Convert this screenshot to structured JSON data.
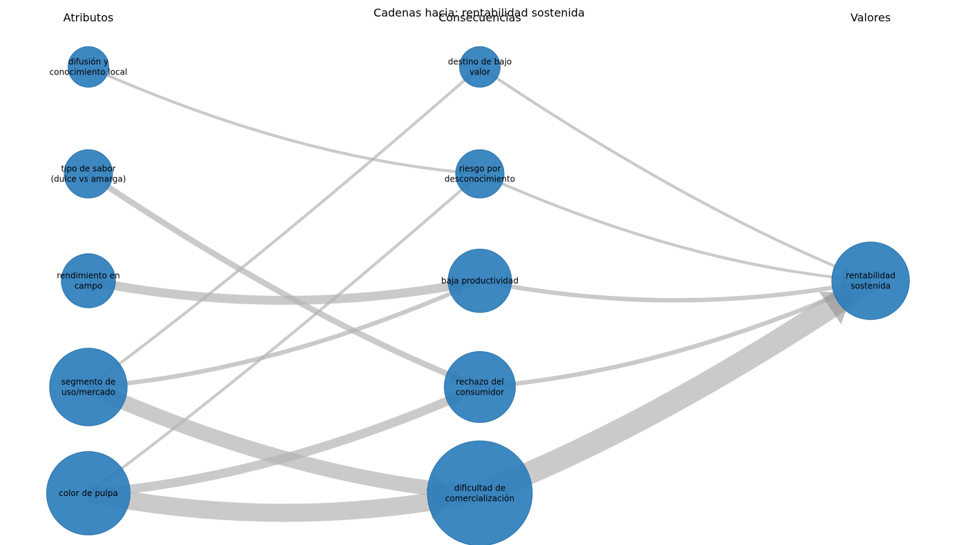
{
  "title": "Cadenas hacia: rentabilidad sostenida",
  "columns": {
    "attributes": "Atributos",
    "consequences": "Consecuencias",
    "values": "Valores"
  },
  "colors": {
    "node": "#2e7ebc",
    "edge": "#b3b3b3",
    "arrow": "#8c8c8c"
  },
  "nodes": [
    {
      "id": "difusion",
      "column": "attributes",
      "label": [
        "difusión y",
        "conocimiento local"
      ],
      "weight": 1
    },
    {
      "id": "sabor",
      "column": "attributes",
      "label": [
        "tipo de sabor",
        "(dulce vs amarga)"
      ],
      "weight": 2
    },
    {
      "id": "rendimiento",
      "column": "attributes",
      "label": [
        "rendimiento en",
        "campo"
      ],
      "weight": 3
    },
    {
      "id": "segmento",
      "column": "attributes",
      "label": [
        "segmento de",
        "uso/mercado"
      ],
      "weight": 9
    },
    {
      "id": "pulpa",
      "column": "attributes",
      "label": [
        "color de pulpa"
      ],
      "weight": 11
    },
    {
      "id": "destino",
      "column": "consequences",
      "label": [
        "destino de bajo",
        "valor"
      ],
      "weight": 1
    },
    {
      "id": "riesgo",
      "column": "consequences",
      "label": [
        "riesgo por",
        "desconocimiento"
      ],
      "weight": 2
    },
    {
      "id": "baja",
      "column": "consequences",
      "label": [
        "baja productividad"
      ],
      "weight": 5
    },
    {
      "id": "rechazo",
      "column": "consequences",
      "label": [
        "rechazo del",
        "consumidor"
      ],
      "weight": 7
    },
    {
      "id": "dificultad",
      "column": "consequences",
      "label": [
        "dificultad de",
        "comercialización"
      ],
      "weight": 20
    },
    {
      "id": "rentabilidad",
      "column": "values",
      "label": [
        "rentabilidad",
        "sostenida"
      ],
      "weight": 9
    }
  ],
  "edges": [
    {
      "source": "difusion",
      "target": "riesgo",
      "weight": 1
    },
    {
      "source": "sabor",
      "target": "rechazo",
      "weight": 3
    },
    {
      "source": "rendimiento",
      "target": "baja",
      "weight": 5
    },
    {
      "source": "segmento",
      "target": "destino",
      "weight": 1
    },
    {
      "source": "segmento",
      "target": "baja",
      "weight": 2
    },
    {
      "source": "segmento",
      "target": "dificultad",
      "weight": 9
    },
    {
      "source": "pulpa",
      "target": "riesgo",
      "weight": 1
    },
    {
      "source": "pulpa",
      "target": "rechazo",
      "weight": 5
    },
    {
      "source": "pulpa",
      "target": "dificultad",
      "weight": 11
    },
    {
      "source": "destino",
      "target": "rentabilidad",
      "weight": 1
    },
    {
      "source": "riesgo",
      "target": "rentabilidad",
      "weight": 1
    },
    {
      "source": "baja",
      "target": "rentabilidad",
      "weight": 2
    },
    {
      "source": "rechazo",
      "target": "rentabilidad",
      "weight": 2
    },
    {
      "source": "dificultad",
      "target": "rentabilidad",
      "weight": 14
    }
  ]
}
